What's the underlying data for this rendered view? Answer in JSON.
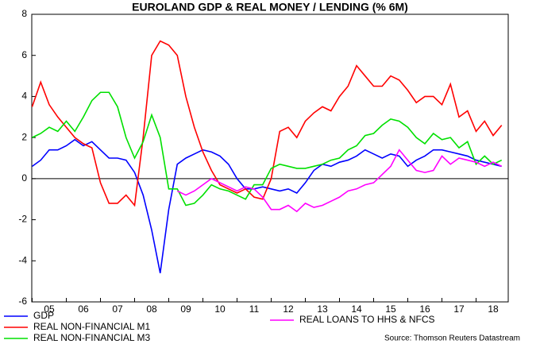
{
  "chart_data": {
    "type": "line",
    "title": "EUROLAND GDP & REAL MONEY / LENDING (% 6M)",
    "source": "Source: Thomson Reuters Datastream",
    "categories": [
      null,
      null,
      "05",
      null,
      null,
      null,
      "06",
      null,
      null,
      null,
      "07",
      null,
      null,
      null,
      "08",
      null,
      null,
      null,
      "09",
      null,
      null,
      null,
      "10",
      null,
      null,
      null,
      "11",
      null,
      null,
      null,
      "12",
      null,
      null,
      null,
      "13",
      null,
      null,
      null,
      "14",
      null,
      null,
      null,
      "15",
      null,
      null,
      null,
      "16",
      null,
      null,
      null,
      "17",
      null,
      null,
      null,
      "18",
      null
    ],
    "ylim": [
      -6,
      8
    ],
    "yticks": [
      -6,
      -4,
      -2,
      0,
      2,
      4,
      6,
      8
    ],
    "grid": false,
    "series": [
      {
        "name": "GDP",
        "color": "#0000ff",
        "values": [
          0.6,
          0.9,
          1.4,
          1.4,
          1.6,
          1.9,
          1.6,
          1.8,
          1.4,
          1.0,
          1.0,
          0.9,
          0.3,
          -0.8,
          -2.5,
          -4.6,
          -1.5,
          0.7,
          1.0,
          1.2,
          1.4,
          1.3,
          1.1,
          0.7,
          0.0,
          -0.5,
          -0.5,
          -0.4,
          -0.5,
          -0.6,
          -0.5,
          -0.7,
          -0.2,
          0.4,
          0.7,
          0.6,
          0.8,
          0.9,
          1.1,
          1.4,
          1.2,
          1.0,
          1.2,
          1.1,
          0.6,
          0.9,
          1.1,
          1.4,
          1.4,
          1.3,
          1.2,
          1.1,
          0.9,
          0.8,
          0.7,
          0.6
        ]
      },
      {
        "name": "REAL NON-FINANCIAL M1",
        "color": "#ff0000",
        "values": [
          3.5,
          4.7,
          3.6,
          3.0,
          2.5,
          2.0,
          1.7,
          1.5,
          -0.2,
          -1.2,
          -1.2,
          -0.8,
          -1.3,
          2.0,
          6.0,
          6.7,
          6.5,
          6.0,
          4.0,
          2.5,
          1.3,
          0.4,
          -0.3,
          -0.5,
          -0.7,
          -0.5,
          -0.9,
          -1.0,
          0.0,
          2.3,
          2.5,
          2.0,
          2.8,
          3.2,
          3.5,
          3.3,
          4.0,
          4.5,
          5.5,
          5.0,
          4.5,
          4.5,
          5.0,
          4.8,
          4.3,
          3.7,
          4.0,
          4.0,
          3.6,
          4.6,
          3.0,
          3.3,
          2.3,
          2.8,
          2.1,
          2.6
        ]
      },
      {
        "name": "REAL NON-FINANCIAL M3",
        "color": "#00e000",
        "values": [
          2.0,
          2.2,
          2.5,
          2.3,
          2.8,
          2.3,
          3.0,
          3.8,
          4.2,
          4.2,
          3.5,
          2.0,
          1.0,
          1.8,
          3.1,
          2.0,
          -0.5,
          -0.5,
          -1.3,
          -1.2,
          -0.8,
          -0.3,
          -0.5,
          -0.6,
          -0.8,
          -1.0,
          -0.3,
          -0.3,
          0.5,
          0.7,
          0.6,
          0.5,
          0.5,
          0.6,
          0.7,
          0.9,
          1.0,
          1.4,
          1.6,
          2.1,
          2.2,
          2.6,
          2.9,
          2.8,
          2.5,
          2.0,
          1.7,
          2.2,
          1.9,
          2.0,
          1.5,
          1.8,
          0.7,
          1.1,
          0.7,
          0.9
        ]
      },
      {
        "name": "REAL LOANS TO HHS & NFCS",
        "color": "#ff00ff",
        "values": [
          null,
          null,
          null,
          null,
          null,
          null,
          null,
          null,
          null,
          null,
          null,
          null,
          null,
          null,
          null,
          null,
          null,
          -0.6,
          -0.8,
          -0.6,
          -0.3,
          0.0,
          -0.2,
          -0.4,
          -0.6,
          -0.4,
          -0.5,
          -0.9,
          -1.5,
          -1.5,
          -1.3,
          -1.6,
          -1.2,
          -1.4,
          -1.3,
          -1.1,
          -0.9,
          -0.6,
          -0.5,
          -0.3,
          -0.2,
          0.2,
          0.6,
          1.4,
          0.9,
          0.4,
          0.3,
          0.4,
          1.1,
          0.7,
          1.0,
          0.9,
          0.8,
          0.6,
          0.8,
          0.6
        ]
      }
    ]
  }
}
